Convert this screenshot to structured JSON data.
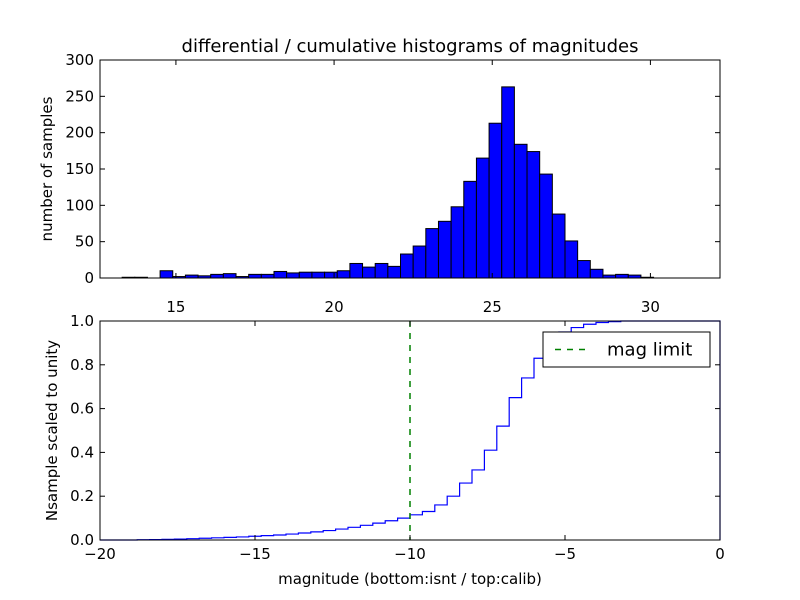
{
  "chart_data": [
    {
      "type": "bar",
      "title": "differential / cumulative histograms of magnitudes",
      "xlabel": "",
      "ylabel": "number of samples",
      "xlim": [
        12.6,
        32.2
      ],
      "ylim": [
        0,
        300
      ],
      "x_ticks": [
        15,
        20,
        25,
        30
      ],
      "y_ticks": [
        0,
        50,
        100,
        150,
        200,
        250,
        300
      ],
      "bar_color": "#0000ff",
      "bin_edges": [
        13.3,
        13.7,
        14.1,
        14.5,
        14.9,
        15.3,
        15.7,
        16.1,
        16.5,
        16.9,
        17.3,
        17.7,
        18.1,
        18.5,
        18.9,
        19.3,
        19.7,
        20.1,
        20.5,
        20.9,
        21.3,
        21.7,
        22.1,
        22.5,
        22.9,
        23.3,
        23.7,
        24.1,
        24.5,
        24.9,
        25.3,
        25.7,
        26.1,
        26.5,
        26.9,
        27.3,
        27.7,
        28.1,
        28.5,
        28.9,
        29.3,
        29.7,
        30.1,
        30.5,
        30.9,
        31.3
      ],
      "values": [
        1,
        1,
        0,
        10,
        2,
        4,
        3,
        5,
        6,
        2,
        5,
        5,
        9,
        7,
        8,
        8,
        8,
        10,
        20,
        15,
        20,
        16,
        33,
        44,
        68,
        78,
        98,
        133,
        165,
        213,
        263,
        184,
        174,
        143,
        88,
        51,
        24,
        12,
        4,
        5,
        4,
        1,
        0,
        0,
        0
      ]
    },
    {
      "type": "line",
      "xlabel": "magnitude (bottom:isnt / top:calib)",
      "ylabel": "Nsample scaled to unity",
      "xlim": [
        -20,
        0
      ],
      "ylim": [
        0,
        1
      ],
      "x_ticks": [
        -20,
        -15,
        -10,
        -5,
        0
      ],
      "y_ticks": [
        0.0,
        0.2,
        0.4,
        0.6,
        0.8,
        1.0
      ],
      "series": [
        {
          "color": "#0000ff",
          "step": true,
          "x": [
            -20.0,
            -19.6,
            -19.2,
            -18.8,
            -18.4,
            -18.0,
            -17.6,
            -17.2,
            -16.8,
            -16.4,
            -16.0,
            -15.6,
            -15.2,
            -14.8,
            -14.4,
            -14.0,
            -13.6,
            -13.2,
            -12.8,
            -12.4,
            -12.0,
            -11.6,
            -11.2,
            -10.8,
            -10.4,
            -10.0,
            -9.6,
            -9.2,
            -8.8,
            -8.4,
            -8.0,
            -7.6,
            -7.2,
            -6.8,
            -6.4,
            -6.0,
            -5.6,
            -5.2,
            -4.8,
            -4.4,
            -4.0,
            -3.6,
            -3.2,
            -2.8,
            -2.4,
            -2.0,
            -1.6,
            -1.2,
            -0.8,
            -0.4,
            0.0
          ],
          "y": [
            0.0,
            0.0,
            0.0,
            0.001,
            0.002,
            0.003,
            0.004,
            0.006,
            0.008,
            0.01,
            0.012,
            0.014,
            0.017,
            0.02,
            0.023,
            0.027,
            0.032,
            0.037,
            0.043,
            0.05,
            0.058,
            0.067,
            0.077,
            0.088,
            0.1,
            0.115,
            0.13,
            0.16,
            0.2,
            0.26,
            0.32,
            0.41,
            0.52,
            0.65,
            0.74,
            0.83,
            0.9,
            0.95,
            0.97,
            0.985,
            0.993,
            0.997,
            1.0,
            1.0,
            1.0,
            1.0,
            1.0,
            1.0,
            1.0,
            1.0,
            1.0
          ]
        },
        {
          "name": "mag limit",
          "color": "#008000",
          "style": "dashed",
          "vertical_x": -10
        }
      ],
      "legend_position": "top-right"
    }
  ]
}
